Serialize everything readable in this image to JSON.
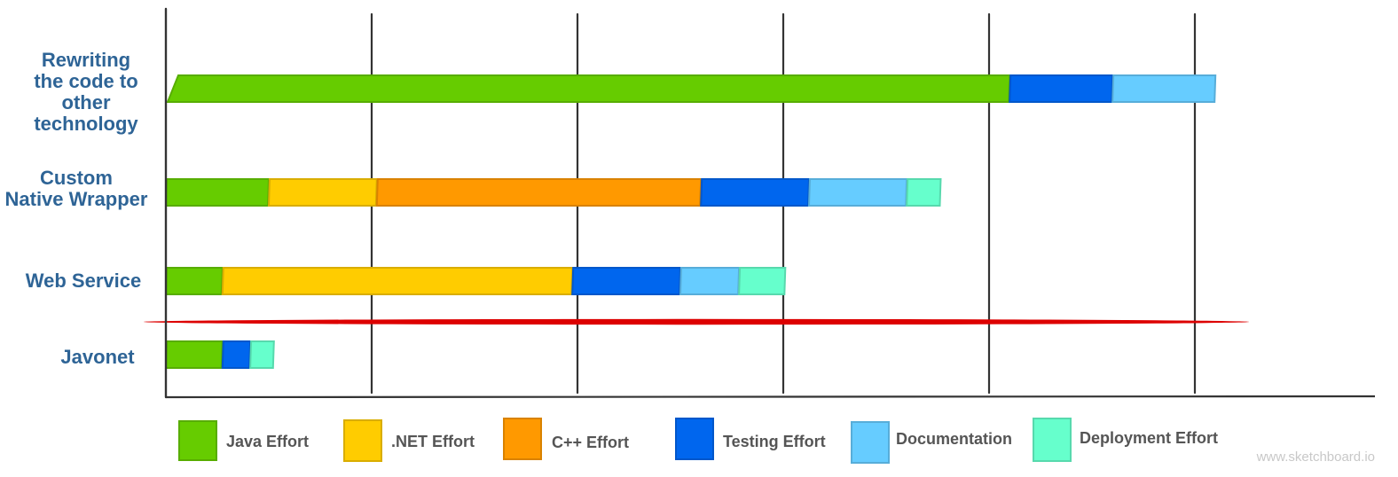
{
  "chart_data": {
    "type": "bar",
    "orientation": "horizontal",
    "stacked": true,
    "categories": [
      "Rewriting the code to other technology",
      "Custom Native Wrapper",
      "Web Service",
      "Javonet"
    ],
    "category_lines": [
      [
        "Rewriting",
        "the code to",
        "other",
        "technology"
      ],
      [
        "Custom",
        "Native Wrapper"
      ],
      [
        "Web Service"
      ],
      [
        "Javonet"
      ]
    ],
    "series": [
      {
        "name": "Java Effort",
        "color": "#66cc00",
        "values": [
          8.2,
          1.0,
          0.55,
          0.55
        ]
      },
      {
        "name": ".NET Effort",
        "color": "#ffcc00",
        "values": [
          0,
          1.05,
          3.4,
          0
        ]
      },
      {
        "name": "C++ Effort",
        "color": "#ff9900",
        "values": [
          0,
          3.15,
          0,
          0
        ]
      },
      {
        "name": "Testing Effort",
        "color": "#0066ee",
        "values": [
          1.0,
          1.05,
          1.05,
          0.27
        ]
      },
      {
        "name": "Documentation",
        "color": "#66ccff",
        "values": [
          1.0,
          0.95,
          0.57,
          0
        ]
      },
      {
        "name": "Deployment Effort",
        "color": "#66ffcc",
        "values": [
          0,
          0.33,
          0.45,
          0.23
        ]
      }
    ],
    "xlim": [
      0,
      12
    ],
    "vertical_gridlines": [
      0,
      2,
      4,
      6,
      8,
      10
    ],
    "grid": true,
    "legend_position": "bottom",
    "highlight_line": {
      "color": "#dd0000",
      "between": [
        "Web Service",
        "Javonet"
      ]
    },
    "watermark": "www.sketchboard.io"
  }
}
